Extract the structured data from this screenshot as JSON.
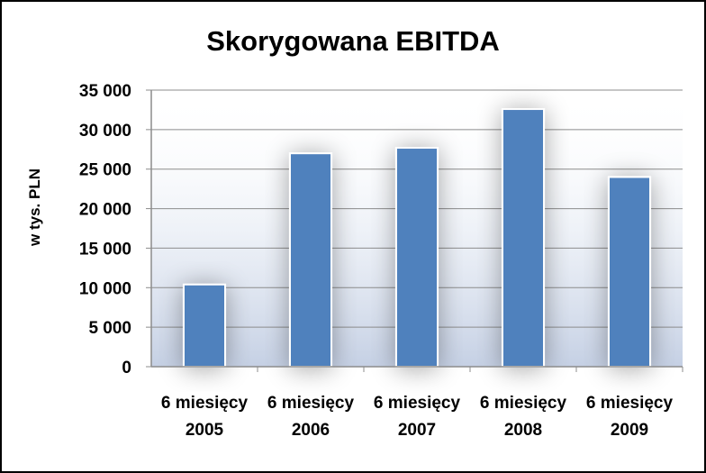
{
  "chart_data": {
    "type": "bar",
    "title": "Skorygowana EBITDA",
    "xlabel": "",
    "ylabel": "w tys. PLN",
    "categories": [
      [
        "6 miesięcy",
        "2005"
      ],
      [
        "6 miesięcy",
        "2006"
      ],
      [
        "6 miesięcy",
        "2007"
      ],
      [
        "6 miesięcy",
        "2008"
      ],
      [
        "6 miesięcy",
        "2009"
      ]
    ],
    "values": [
      10400,
      27000,
      27700,
      32600,
      24000
    ],
    "ylim": [
      0,
      35000
    ],
    "yticks": [
      0,
      5000,
      10000,
      15000,
      20000,
      25000,
      30000,
      35000
    ],
    "ytick_labels": [
      "0",
      "5 000",
      "10 000",
      "15 000",
      "20 000",
      "25 000",
      "30 000",
      "35 000"
    ],
    "grid": true,
    "legend": "none",
    "colors": {
      "bar": "#4f81bd",
      "bar_edge": "#ffffff",
      "grid": "#8c8c8c",
      "plot_shade": "#c5d0e4"
    }
  }
}
